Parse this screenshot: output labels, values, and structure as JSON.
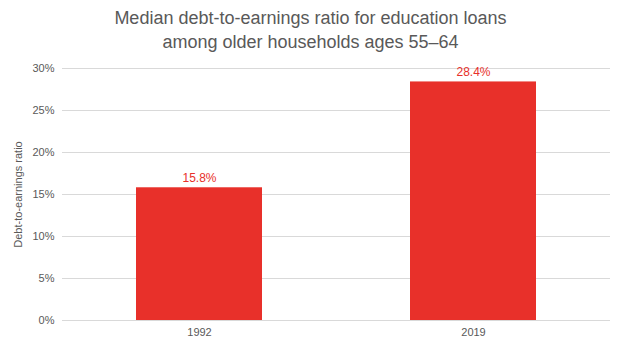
{
  "chart_data": {
    "type": "bar",
    "title": "Median debt-to-earnings ratio for education loans\namong older households ages 55–64",
    "ylabel": "Debt-to-earnings ratio",
    "categories": [
      "1992",
      "2019"
    ],
    "values": [
      15.8,
      28.4
    ],
    "value_labels": [
      "15.8%",
      "28.4%"
    ],
    "color": "#e8302a",
    "ylim": [
      0,
      30
    ],
    "yticks": [
      {
        "value": 0,
        "label": "0%"
      },
      {
        "value": 5,
        "label": "5%"
      },
      {
        "value": 10,
        "label": "10%"
      },
      {
        "value": 15,
        "label": "15%"
      },
      {
        "value": 20,
        "label": "20%"
      },
      {
        "value": 25,
        "label": "25%"
      },
      {
        "value": 30,
        "label": "30%"
      }
    ],
    "grid": true,
    "data_labels": true
  }
}
